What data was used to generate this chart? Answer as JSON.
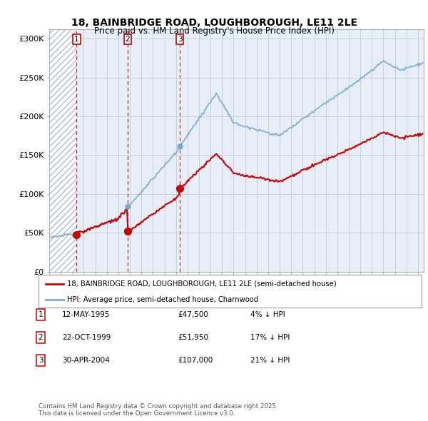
{
  "title_line1": "18, BAINBRIDGE ROAD, LOUGHBOROUGH, LE11 2LE",
  "title_line2": "Price paid vs. HM Land Registry's House Price Index (HPI)",
  "ylabel_ticks": [
    "£0",
    "£50K",
    "£100K",
    "£150K",
    "£200K",
    "£250K",
    "£300K"
  ],
  "ytick_values": [
    0,
    50000,
    100000,
    150000,
    200000,
    250000,
    300000
  ],
  "ylim": [
    0,
    312000
  ],
  "xlim_start": 1993.0,
  "xlim_end": 2025.5,
  "hatch_end_year": 1995.37,
  "sale_markers": [
    {
      "year": 1995.37,
      "price": 47500,
      "label": "1"
    },
    {
      "year": 1999.81,
      "price": 51950,
      "label": "2"
    },
    {
      "year": 2004.33,
      "price": 107000,
      "label": "3"
    }
  ],
  "transactions": [
    {
      "number": 1,
      "date": "12-MAY-1995",
      "price": "£47,500",
      "hpi": "4% ↓ HPI"
    },
    {
      "number": 2,
      "date": "22-OCT-1999",
      "price": "£51,950",
      "hpi": "17% ↓ HPI"
    },
    {
      "number": 3,
      "date": "30-APR-2004",
      "price": "£107,000",
      "hpi": "21% ↓ HPI"
    }
  ],
  "legend_line1": "18, BAINBRIDGE ROAD, LOUGHBOROUGH, LE11 2LE (semi-detached house)",
  "legend_line2": "HPI: Average price, semi-detached house, Charnwood",
  "footer": "Contains HM Land Registry data © Crown copyright and database right 2025.\nThis data is licensed under the Open Government Licence v3.0.",
  "bg_color": "#e8eef8",
  "grid_color": "#c8d0dc",
  "red_color": "#cc0000",
  "blue_color": "#7aaacc",
  "hpi_line_color": "#7aaacc",
  "prop_line_color": "#cc0000"
}
